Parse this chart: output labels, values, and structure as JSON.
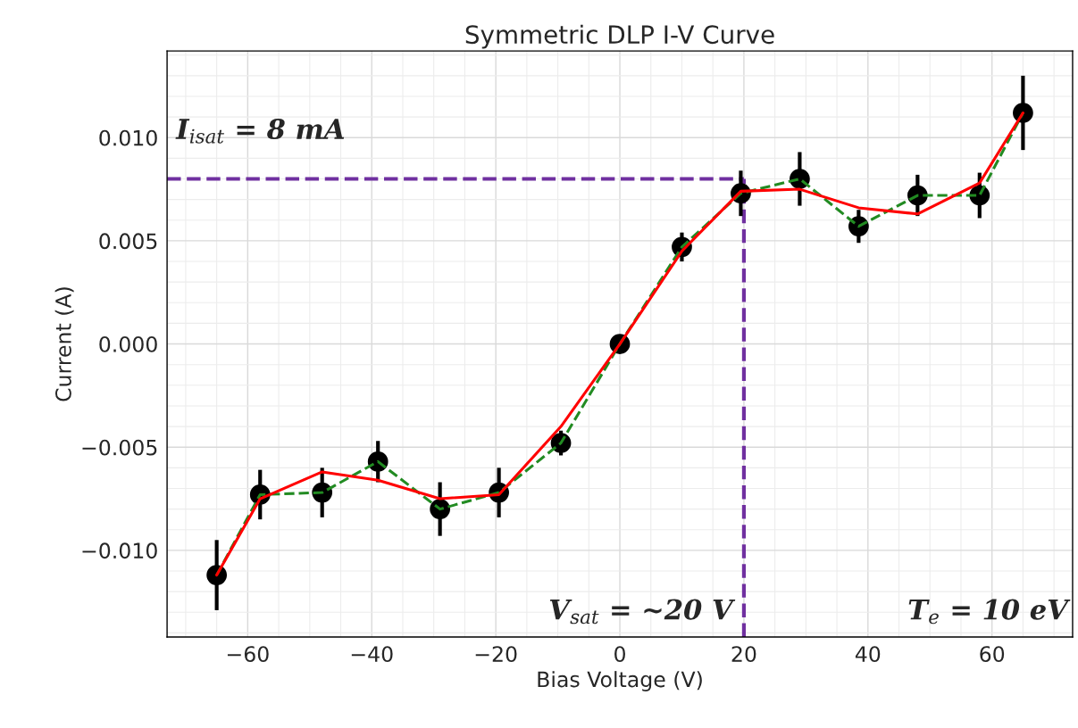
{
  "chart_data": {
    "type": "scatter",
    "title": "Symmetric DLP I-V Curve",
    "xlabel": "Bias Voltage (V)",
    "ylabel": "Current (A)",
    "x": [
      -65,
      -58,
      -48,
      -39,
      -29,
      -19.5,
      -9.5,
      0,
      10,
      19.5,
      29,
      38.5,
      48,
      58,
      65
    ],
    "series": [
      {
        "type": "line",
        "color": "#228b22",
        "line_style": "dashed",
        "marker": "none",
        "values": [
          -0.0112,
          -0.0073,
          -0.0072,
          -0.0057,
          -0.008,
          -0.0072,
          -0.0048,
          0.0,
          0.0047,
          0.0073,
          0.008,
          0.0057,
          0.0072,
          0.0072,
          0.0112
        ]
      },
      {
        "type": "line",
        "color": "#ff0000",
        "line_style": "solid",
        "marker": "none",
        "values": [
          -0.0112,
          -0.0075,
          -0.0062,
          -0.0066,
          -0.0075,
          -0.0073,
          -0.004,
          0.0,
          0.0045,
          0.0074,
          0.0075,
          0.0066,
          0.0063,
          0.0078,
          0.0112
        ]
      },
      {
        "color": "#000000",
        "marker": "circle",
        "values": [
          -0.0112,
          -0.0073,
          -0.0072,
          -0.0057,
          -0.008,
          -0.0072,
          -0.0048,
          0.0,
          0.0047,
          0.0073,
          0.008,
          0.0057,
          0.0072,
          0.0072,
          0.0112
        ],
        "errors": [
          0.0017,
          0.0012,
          0.0012,
          0.001,
          0.0013,
          0.0012,
          0.0006,
          null,
          0.0007,
          0.0011,
          0.0013,
          0.0008,
          0.001,
          0.0011,
          0.0018
        ]
      }
    ],
    "xlim": [
      -73,
      73
    ],
    "ylim": [
      -0.0142,
      0.0142
    ],
    "xticks": [
      {
        "value": -60,
        "label": "−60"
      },
      {
        "value": -40,
        "label": "−40"
      },
      {
        "value": -20,
        "label": "−20"
      },
      0,
      20,
      40,
      60
    ],
    "yticks": [
      {
        "value": -0.01,
        "label": "−0.010"
      },
      {
        "value": -0.005,
        "label": "−0.005"
      },
      {
        "value": 0,
        "label": "0.000"
      },
      {
        "value": 0.005,
        "label": "0.005"
      },
      {
        "value": 0.01,
        "label": "0.010"
      }
    ],
    "grid": true,
    "ref_lines": [
      {
        "axis": "y",
        "value": 0.008,
        "color": "#7030a0",
        "line_style": "dashed"
      },
      {
        "axis": "x",
        "value": 20,
        "color": "#7030a0",
        "line_style": "dashed"
      }
    ],
    "annotations": [
      "I$_{isat}$ = 8 mA",
      "V$_{sat}$ = ~20 V",
      "T$_{e}$ = 10 eV"
    ]
  }
}
